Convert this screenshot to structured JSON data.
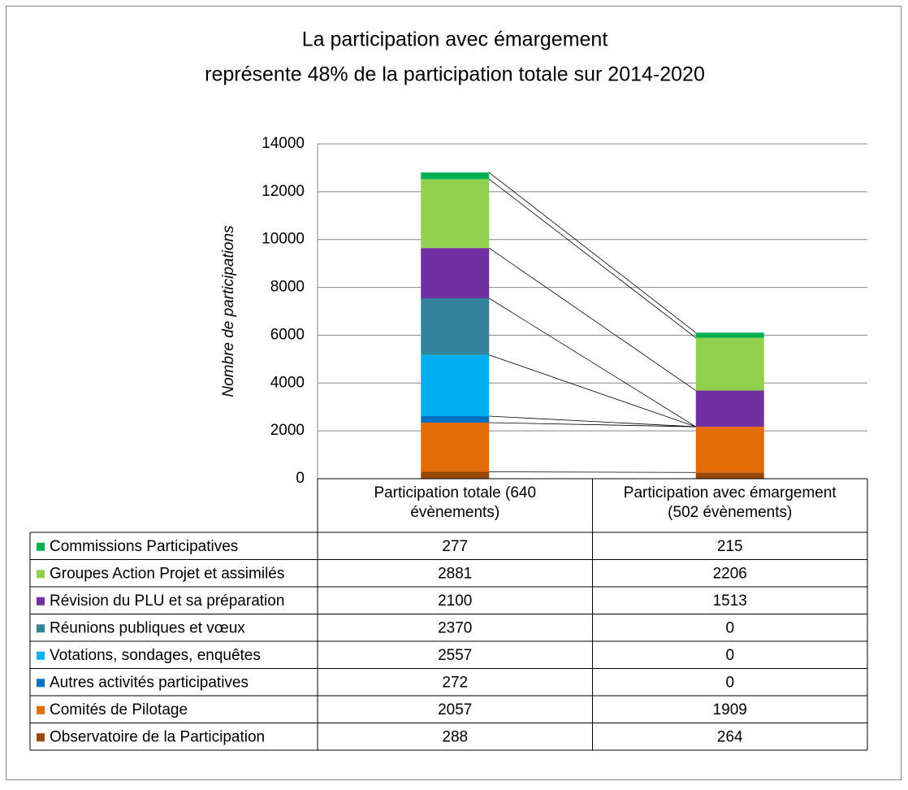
{
  "chart_data": {
    "type": "stacked-bar",
    "title": "La participation avec émargement",
    "subtitle": "représente 48% de la participation totale sur 2014-2020",
    "y_label": "Nombre de participations",
    "categories": [
      "Participation totale (640 évènements)",
      "Participation avec émargement (502 évènements)"
    ],
    "ylim": [
      0,
      14000
    ],
    "yticks": [
      0,
      2000,
      4000,
      6000,
      8000,
      10000,
      12000,
      14000
    ],
    "grid": true,
    "series": [
      {
        "name": "Commissions Participatives",
        "color": "#00b050",
        "values": [
          277,
          215
        ]
      },
      {
        "name": "Groupes Action Projet et assimilés",
        "color": "#92d050",
        "values": [
          2881,
          2206
        ]
      },
      {
        "name": "Révision du PLU et sa préparation",
        "color": "#7030a0",
        "values": [
          2100,
          1513
        ]
      },
      {
        "name": "Réunions publiques et vœux",
        "color": "#31849b",
        "values": [
          2370,
          0
        ]
      },
      {
        "name": "Votations, sondages, enquêtes",
        "color": "#00b0f0",
        "values": [
          2557,
          0
        ]
      },
      {
        "name": "Autres activités participatives",
        "color": "#0070c0",
        "values": [
          272,
          0
        ]
      },
      {
        "name": "Comités de Pilotage",
        "color": "#e36c09",
        "values": [
          2057,
          1909
        ]
      },
      {
        "name": "Observatoire de la Participation",
        "color": "#984807",
        "values": [
          288,
          264
        ]
      }
    ]
  }
}
